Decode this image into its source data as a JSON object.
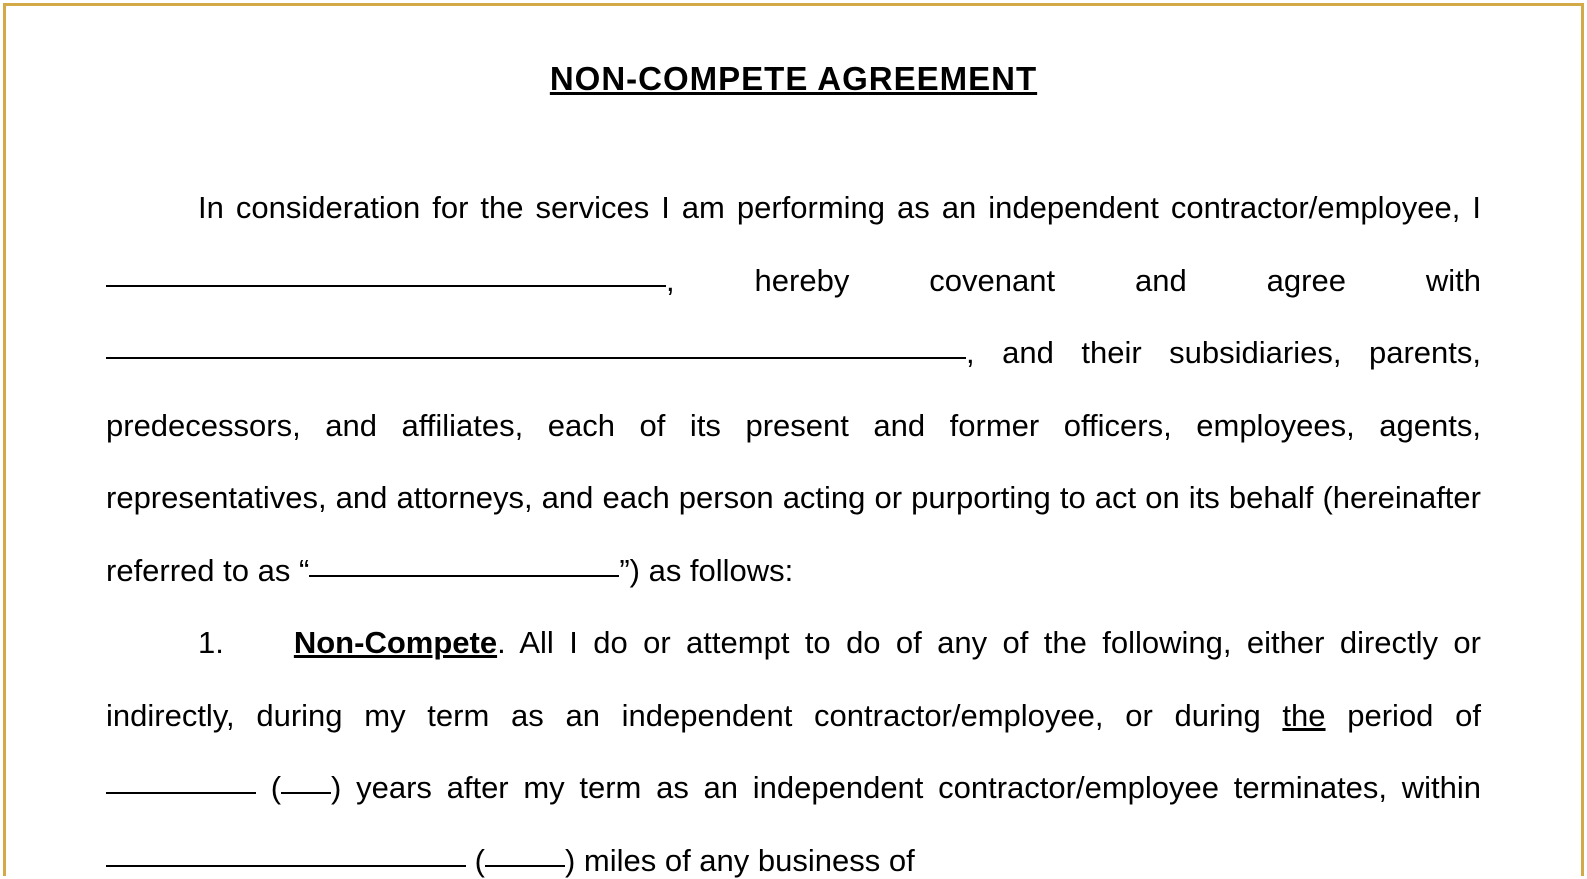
{
  "border_color": "#d4a947",
  "background_color": "#ffffff",
  "text_color": "#000000",
  "title": "NON-COMPETE AGREEMENT",
  "title_fontsize": 33,
  "body_fontsize": 31,
  "line_height": 2.34,
  "intro": {
    "seg1": "In consideration for the services I am performing as an independent contractor/employee, I ",
    "seg2": ", hereby covenant and agree with ",
    "seg3": ", and their subsidiaries, parents, predecessors, and affiliates, each of its present and former officers, employees, agents, representatives, and attorneys, and each person acting or purporting to act on its behalf (hereinafter referred to as “",
    "seg4": "”) as follows:"
  },
  "section1": {
    "number": "1.",
    "heading": "Non-Compete",
    "seg1": ".  All I do or attempt to do of any of the following, either directly or indirectly, during my term as an independent contractor/employee, or during ",
    "the": "the",
    "seg2": " period of ",
    "seg3": " (",
    "seg4": ") years after my term as an independent contractor/employee terminates, within ",
    "seg5": " (",
    "seg6": ") miles of any business of ",
    "seg7": ":"
  }
}
